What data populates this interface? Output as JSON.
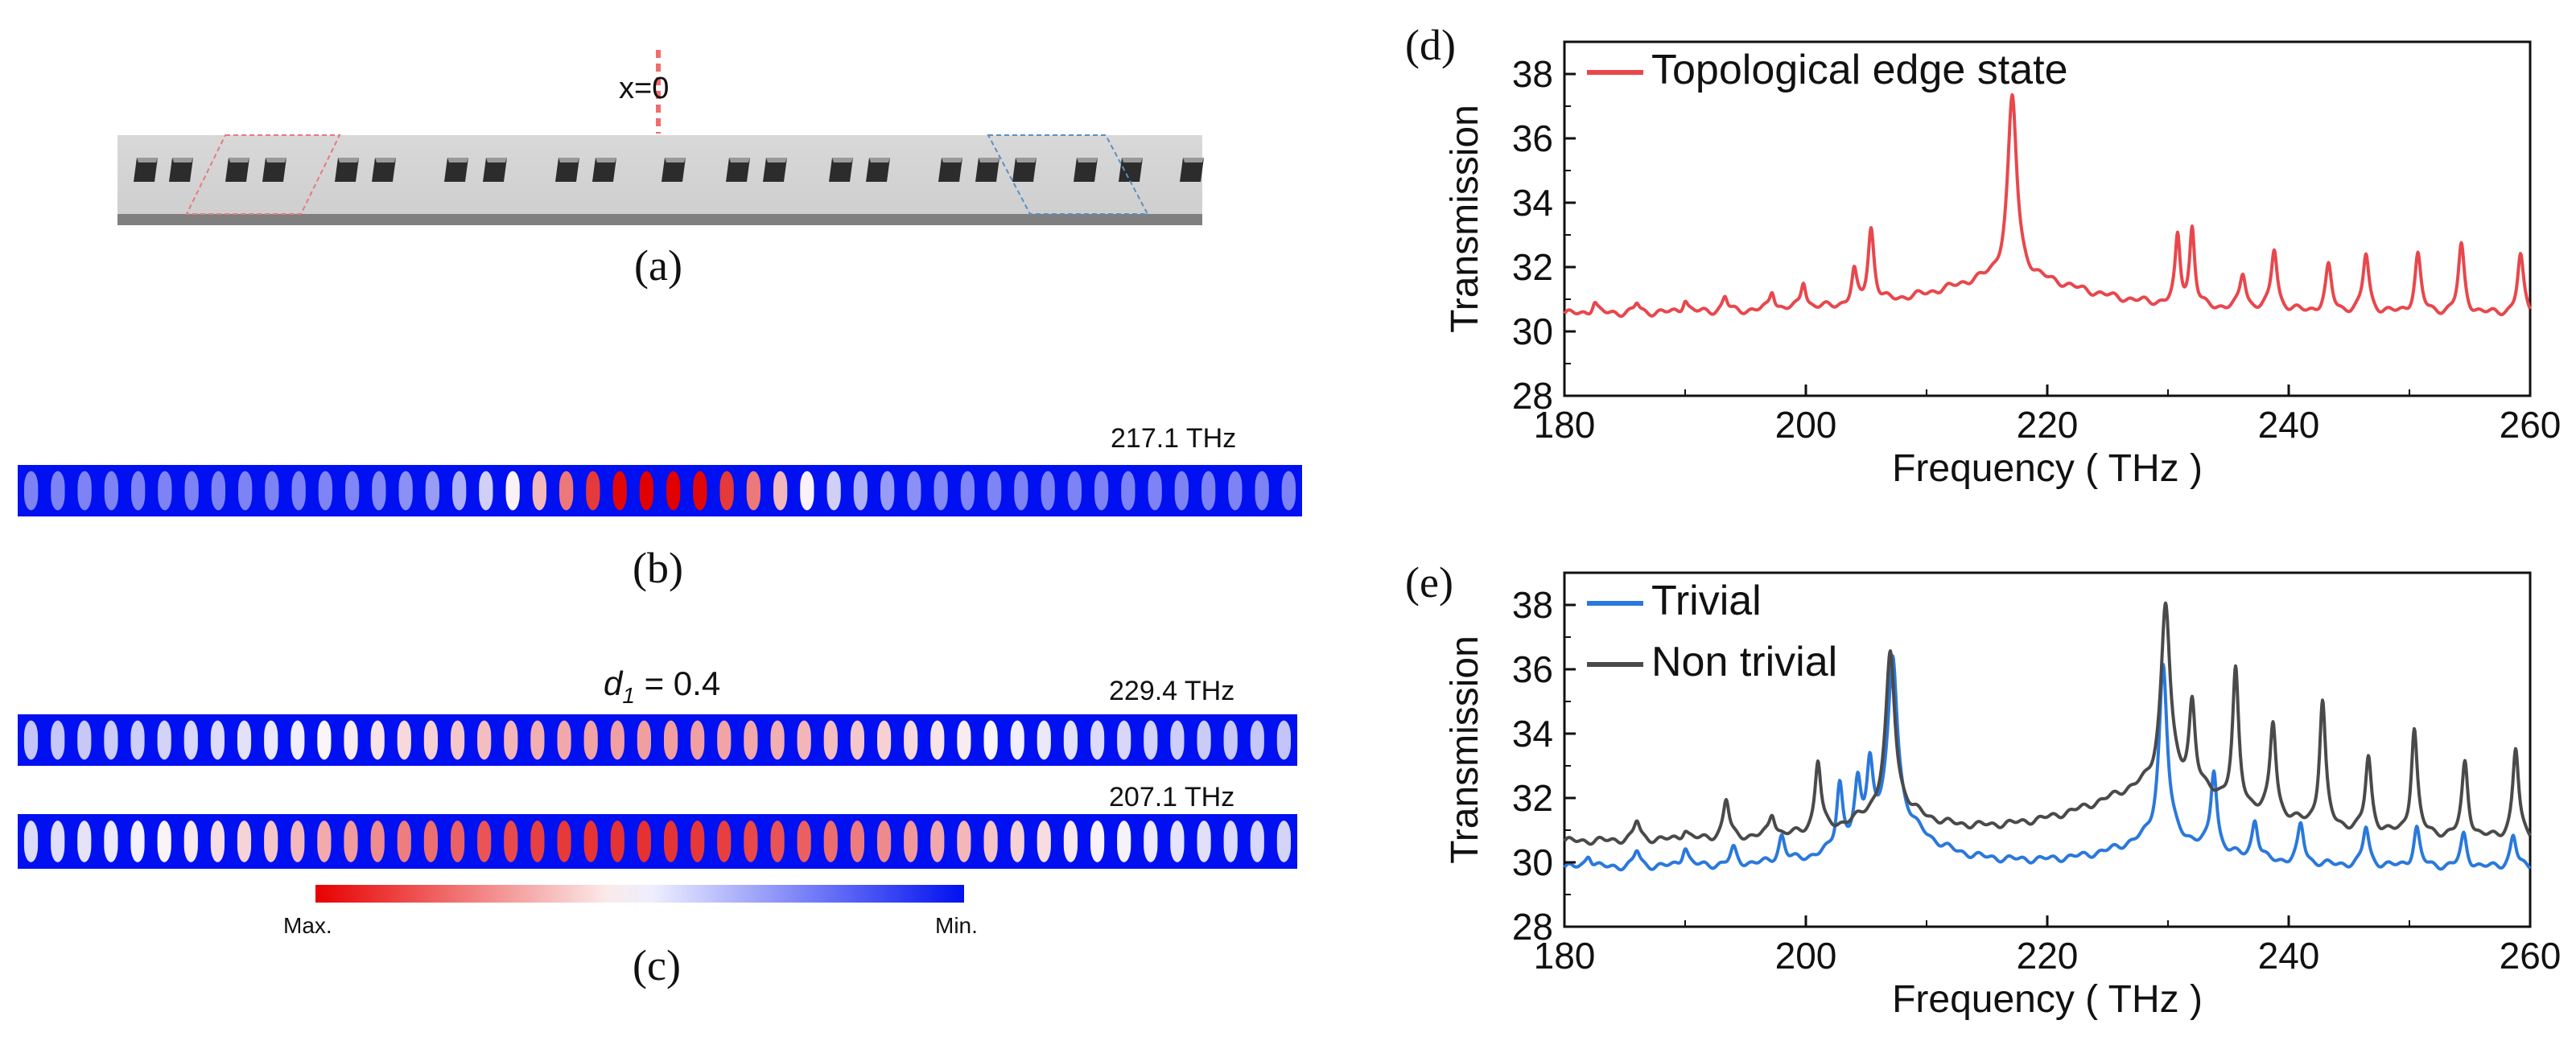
{
  "panel_labels": {
    "a": "(a)",
    "b": "(b)",
    "c": "(c)",
    "d": "(d)",
    "e": "(e)"
  },
  "panel_a": {
    "x_marker": "x=0"
  },
  "panel_b": {
    "frequency_label": "217.1 THz"
  },
  "panel_c": {
    "d1_symbol": "d",
    "d1_subscript": "1",
    "d1_value": " = 0.4",
    "upper_label": "229.4 THz",
    "lower_label": "207.1 THz",
    "colorbar": {
      "max_label": "Max.",
      "min_label": "Min."
    }
  },
  "colors": {
    "red": "#e8474c",
    "blue": "#2a78dc",
    "gray": "#4a4a4a",
    "field_min": "#0010f0",
    "field_max": "#e00000"
  },
  "chart_data": [
    {
      "id": "d",
      "type": "line",
      "title": "",
      "xlabel": "Frequency ( THz )",
      "ylabel": "Transmission",
      "xlim": [
        180,
        260
      ],
      "ylim": [
        28,
        39
      ],
      "xticks": [
        180,
        200,
        220,
        240,
        260
      ],
      "yticks": [
        28,
        30,
        32,
        34,
        36,
        38
      ],
      "legend_position": "top-left",
      "series": [
        {
          "name": "Topological edge state",
          "color": "#e8474c",
          "baseline": 30.5,
          "baseline_slope": 0.0,
          "peaks": [
            {
              "x": 182.5,
              "h": 0.35,
              "w": 0.25
            },
            {
              "x": 186.0,
              "h": 0.3,
              "w": 0.25
            },
            {
              "x": 190.0,
              "h": 0.4,
              "w": 0.25
            },
            {
              "x": 193.3,
              "h": 0.45,
              "w": 0.25
            },
            {
              "x": 197.2,
              "h": 0.6,
              "w": 0.25
            },
            {
              "x": 199.8,
              "h": 0.85,
              "w": 0.25
            },
            {
              "x": 204.0,
              "h": 1.0,
              "w": 0.25
            },
            {
              "x": 205.4,
              "h": 2.3,
              "w": 0.3
            },
            {
              "x": 217.1,
              "h": 5.6,
              "w": 0.45
            },
            {
              "x": 230.8,
              "h": 2.1,
              "w": 0.25
            },
            {
              "x": 232.0,
              "h": 2.4,
              "w": 0.25
            },
            {
              "x": 236.2,
              "h": 1.1,
              "w": 0.3
            },
            {
              "x": 238.8,
              "h": 1.9,
              "w": 0.3
            },
            {
              "x": 243.3,
              "h": 1.4,
              "w": 0.3
            },
            {
              "x": 246.4,
              "h": 1.8,
              "w": 0.3
            },
            {
              "x": 250.7,
              "h": 1.8,
              "w": 0.3
            },
            {
              "x": 254.3,
              "h": 2.1,
              "w": 0.3
            },
            {
              "x": 259.2,
              "h": 1.8,
              "w": 0.3
            }
          ],
          "broad": [
            {
              "x": 217.1,
              "h": 1.2,
              "w": 8.0
            }
          ]
        }
      ]
    },
    {
      "id": "e",
      "type": "line",
      "title": "",
      "xlabel": "Frequency ( THz )",
      "ylabel": "Transmission",
      "xlim": [
        180,
        260
      ],
      "ylim": [
        28,
        39
      ],
      "xticks": [
        180,
        200,
        220,
        240,
        260
      ],
      "yticks": [
        28,
        30,
        32,
        34,
        36,
        38
      ],
      "legend_position": "top-left",
      "series": [
        {
          "name": "Trivial",
          "color": "#2a78dc",
          "baseline": 29.8,
          "baseline_slope": 0.0,
          "peaks": [
            {
              "x": 182.0,
              "h": 0.4,
              "w": 0.3
            },
            {
              "x": 186.0,
              "h": 0.5,
              "w": 0.3
            },
            {
              "x": 190.0,
              "h": 0.6,
              "w": 0.3
            },
            {
              "x": 194.0,
              "h": 0.5,
              "w": 0.3
            },
            {
              "x": 198.0,
              "h": 0.8,
              "w": 0.3
            },
            {
              "x": 202.8,
              "h": 2.0,
              "w": 0.3
            },
            {
              "x": 204.3,
              "h": 1.6,
              "w": 0.3
            },
            {
              "x": 205.3,
              "h": 2.0,
              "w": 0.3
            },
            {
              "x": 207.2,
              "h": 5.0,
              "w": 0.45
            },
            {
              "x": 229.6,
              "h": 5.4,
              "w": 0.4
            },
            {
              "x": 233.8,
              "h": 2.5,
              "w": 0.3
            },
            {
              "x": 237.2,
              "h": 1.2,
              "w": 0.3
            },
            {
              "x": 241.0,
              "h": 1.2,
              "w": 0.3
            },
            {
              "x": 246.4,
              "h": 1.2,
              "w": 0.3
            },
            {
              "x": 250.6,
              "h": 1.2,
              "w": 0.3
            },
            {
              "x": 254.5,
              "h": 1.0,
              "w": 0.3
            },
            {
              "x": 258.6,
              "h": 1.0,
              "w": 0.3
            }
          ],
          "broad": [
            {
              "x": 207.2,
              "h": 1.5,
              "w": 3.5
            },
            {
              "x": 229.6,
              "h": 0.9,
              "w": 5.0
            }
          ]
        },
        {
          "name": "Non trivial",
          "color": "#4a4a4a",
          "baseline": 30.6,
          "baseline_slope": 0.0,
          "peaks": [
            {
              "x": 186.0,
              "h": 0.6,
              "w": 0.3
            },
            {
              "x": 190.0,
              "h": 0.3,
              "w": 0.3
            },
            {
              "x": 193.4,
              "h": 1.2,
              "w": 0.3
            },
            {
              "x": 197.2,
              "h": 0.7,
              "w": 0.3
            },
            {
              "x": 201.0,
              "h": 2.2,
              "w": 0.3
            },
            {
              "x": 207.0,
              "h": 4.8,
              "w": 0.45
            },
            {
              "x": 229.8,
              "h": 5.6,
              "w": 0.45
            },
            {
              "x": 232.0,
              "h": 2.6,
              "w": 0.3
            },
            {
              "x": 235.6,
              "h": 4.1,
              "w": 0.3
            },
            {
              "x": 238.7,
              "h": 2.9,
              "w": 0.3
            },
            {
              "x": 242.8,
              "h": 3.9,
              "w": 0.3
            },
            {
              "x": 246.6,
              "h": 2.3,
              "w": 0.3
            },
            {
              "x": 250.4,
              "h": 3.3,
              "w": 0.3
            },
            {
              "x": 254.6,
              "h": 2.3,
              "w": 0.3
            },
            {
              "x": 258.8,
              "h": 2.8,
              "w": 0.3
            }
          ],
          "broad": [
            {
              "x": 207.0,
              "h": 0.9,
              "w": 3.5
            },
            {
              "x": 229.8,
              "h": 1.8,
              "w": 8.0
            }
          ]
        }
      ]
    }
  ]
}
